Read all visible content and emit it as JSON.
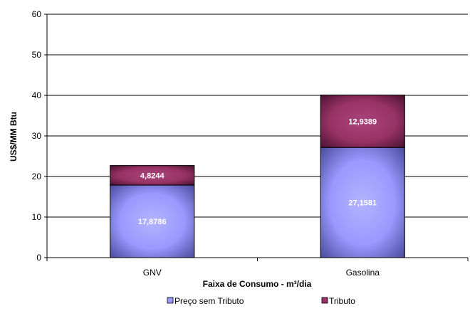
{
  "chart_data": {
    "type": "bar",
    "stacked": true,
    "categories": [
      "GNV",
      "Gasolina"
    ],
    "series": [
      {
        "name": "Preço sem Tributo",
        "values": [
          17.8786,
          27.1581
        ],
        "labels": [
          "17,8786",
          "27,1581"
        ],
        "color": "#9999FF",
        "edge_color": "#4B4B9E"
      },
      {
        "name": "Tributo",
        "values": [
          4.8244,
          12.9389
        ],
        "labels": [
          "4,8244",
          "12,9389"
        ],
        "color": "#993366",
        "edge_color": "#4A1230"
      }
    ],
    "title": "",
    "xlabel": "Faixa de Consumo - m³/dia",
    "ylabel": "US$/MM Btu",
    "ylim": [
      0,
      60
    ],
    "yticks": [
      0,
      10,
      20,
      30,
      40,
      50,
      60
    ],
    "grid": "horizontal",
    "legend_position": "bottom"
  }
}
